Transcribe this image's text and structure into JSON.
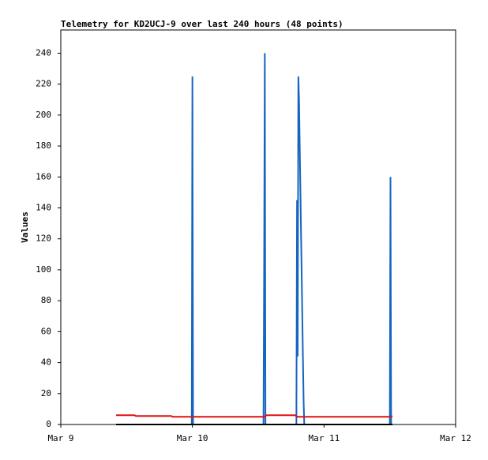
{
  "chart_data": {
    "type": "line",
    "title": "Telemetry for KD2UCJ-9 over last 240 hours (48 points)",
    "y_label": "Values",
    "xlim": [
      0,
      3
    ],
    "xticks": [
      {
        "value": 0,
        "label": "Mar 9"
      },
      {
        "value": 1,
        "label": "Mar 10"
      },
      {
        "value": 2,
        "label": "Mar 11"
      },
      {
        "value": 3,
        "label": "Mar 12"
      }
    ],
    "ylim": [
      0,
      255
    ],
    "yticks": [
      0,
      20,
      40,
      60,
      80,
      100,
      120,
      140,
      160,
      180,
      200,
      220,
      240
    ],
    "grid": false,
    "series": [
      {
        "color": "#1565c0",
        "x": [
          0.42,
          0.995,
          1.0,
          1.005,
          1.54,
          1.545,
          1.55,
          1.555,
          1.79,
          1.795,
          1.8,
          1.805,
          1.81,
          1.815,
          1.82,
          1.825,
          1.83,
          1.835,
          1.84,
          1.845,
          1.85,
          2.5,
          2.505,
          2.51
        ],
        "values": [
          0,
          0,
          225,
          0,
          0,
          104,
          240,
          0,
          0,
          145,
          44,
          225,
          210,
          182,
          155,
          126,
          98,
          70,
          42,
          15,
          0,
          0,
          160,
          0
        ]
      },
      {
        "color": "#e01010",
        "x": [
          0.42,
          0.56,
          0.57,
          0.84,
          0.85,
          1.55,
          1.56,
          1.78,
          1.8,
          2.51,
          2.52
        ],
        "values": [
          6,
          6,
          5.5,
          5.5,
          5,
          5,
          6,
          6,
          5,
          5,
          5.5
        ]
      },
      {
        "color": "#000000",
        "x": [
          0.42,
          2.52
        ],
        "values": [
          0,
          0
        ]
      }
    ]
  }
}
